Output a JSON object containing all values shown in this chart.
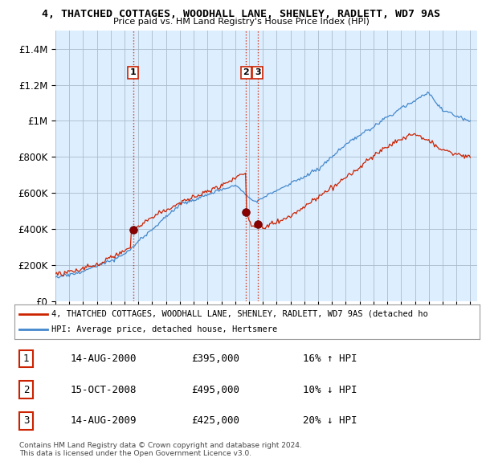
{
  "title": "4, THATCHED COTTAGES, WOODHALL LANE, SHENLEY, RADLETT, WD7 9AS",
  "subtitle": "Price paid vs. HM Land Registry's House Price Index (HPI)",
  "ylim": [
    0,
    1500000
  ],
  "yticks": [
    0,
    200000,
    400000,
    600000,
    800000,
    1000000,
    1200000,
    1400000
  ],
  "ytick_labels": [
    "£0",
    "£200K",
    "£400K",
    "£600K",
    "£800K",
    "£1M",
    "£1.2M",
    "£1.4M"
  ],
  "chart_bg_color": "#ddeeff",
  "hpi_color": "#4488cc",
  "price_color": "#cc2200",
  "marker_color": "#880000",
  "vline_color": "#cc2200",
  "sale_dates": [
    2000.62,
    2008.79,
    2009.62
  ],
  "sale_prices": [
    395000,
    495000,
    425000
  ],
  "sale_labels": [
    "1",
    "2",
    "3"
  ],
  "legend_price_label": "4, THATCHED COTTAGES, WOODHALL LANE, SHENLEY, RADLETT, WD7 9AS (detached ho",
  "legend_hpi_label": "HPI: Average price, detached house, Hertsmere",
  "table_rows": [
    [
      "1",
      "14-AUG-2000",
      "£395,000",
      "16% ↑ HPI"
    ],
    [
      "2",
      "15-OCT-2008",
      "£495,000",
      "10% ↓ HPI"
    ],
    [
      "3",
      "14-AUG-2009",
      "£425,000",
      "20% ↓ HPI"
    ]
  ],
  "footer": "Contains HM Land Registry data © Crown copyright and database right 2024.\nThis data is licensed under the Open Government Licence v3.0.",
  "bg_color": "#ffffff",
  "grid_color": "#aabbcc"
}
